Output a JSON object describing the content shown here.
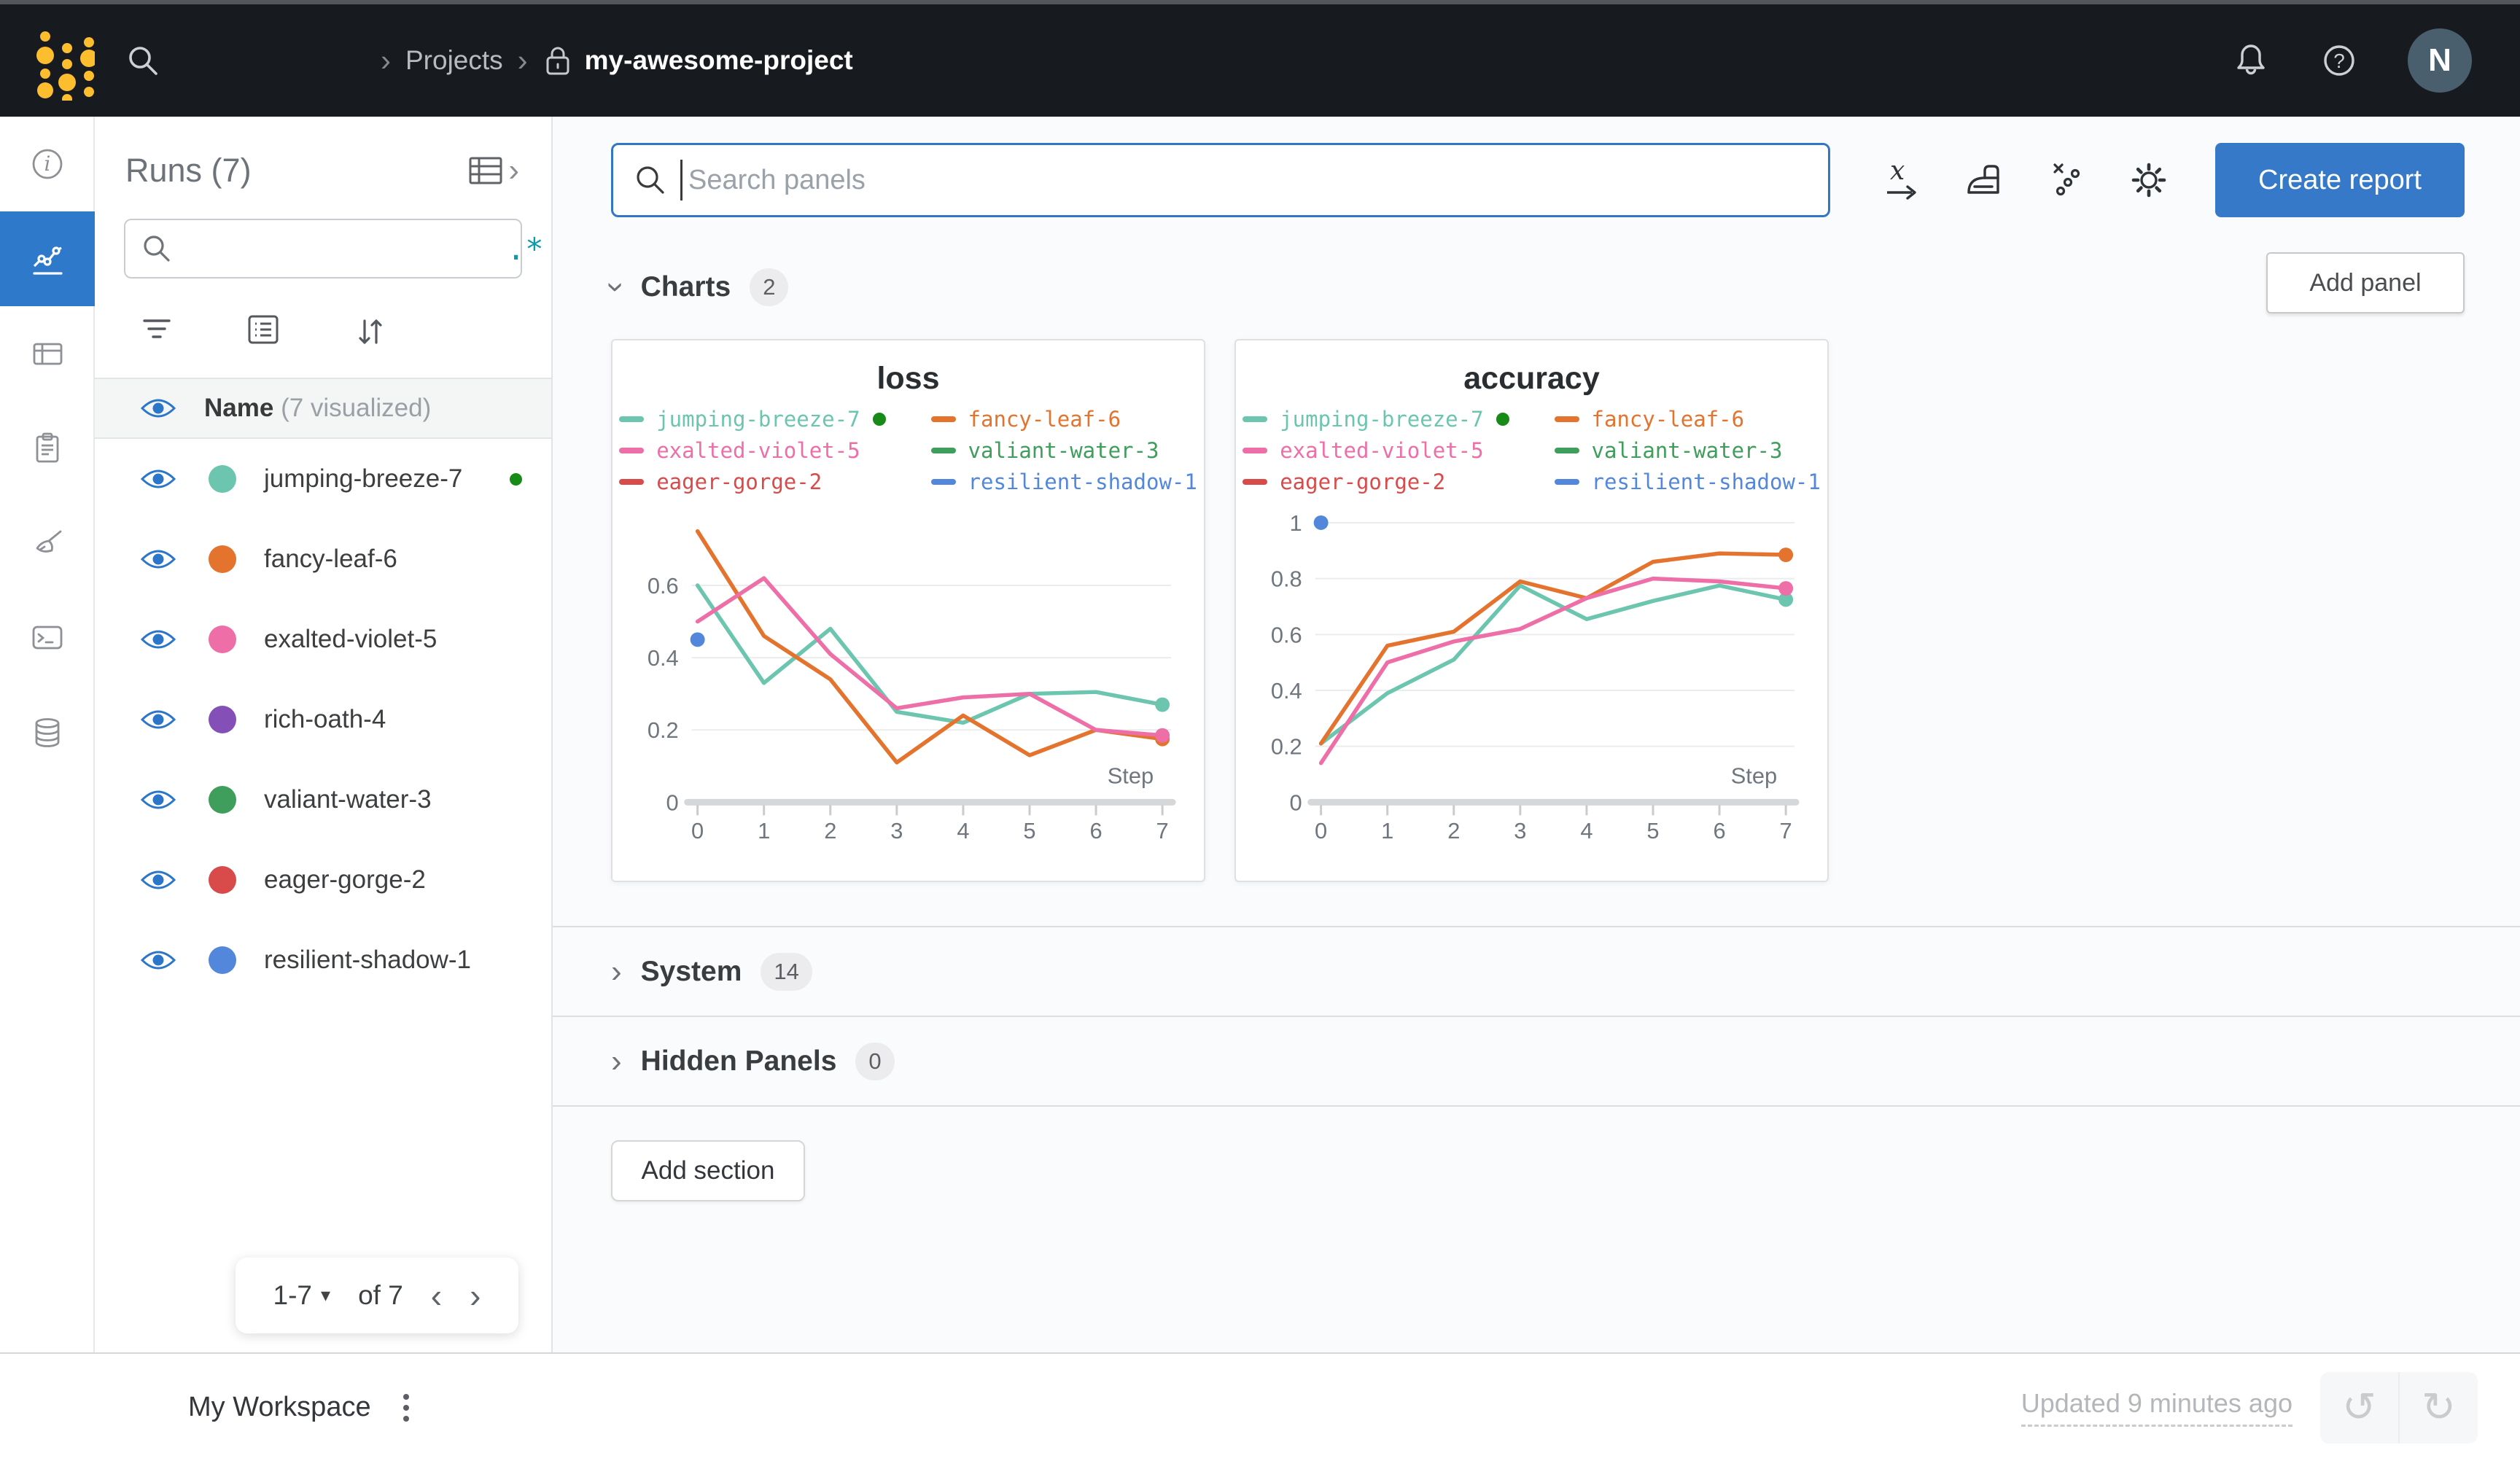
{
  "glyphs": {
    "chevron": "›",
    "dropdown": "▾",
    "prev": "‹",
    "next": "›",
    "undo": "↺",
    "redo": "↻"
  },
  "topbar": {
    "breadcrumb": {
      "projects": "Projects",
      "project_name": "my-awesome-project"
    },
    "avatar_initial": "N"
  },
  "runs_panel": {
    "title": "Runs (7)",
    "regex_toggle": ".*",
    "header": {
      "name": "Name",
      "visualized": "(7 visualized)"
    },
    "runs": [
      {
        "label": "jumping-breeze-7",
        "color": "#6cc5ae",
        "active": true
      },
      {
        "label": "fancy-leaf-6",
        "color": "#e4732e",
        "active": false
      },
      {
        "label": "exalted-violet-5",
        "color": "#ee6ea7",
        "active": false
      },
      {
        "label": "rich-oath-4",
        "color": "#8450b8",
        "active": false
      },
      {
        "label": "valiant-water-3",
        "color": "#3f9e5b",
        "active": false
      },
      {
        "label": "eager-gorge-2",
        "color": "#d94a4a",
        "active": false
      },
      {
        "label": "resilient-shadow-1",
        "color": "#5287dc",
        "active": false
      }
    ],
    "pagination": {
      "range": "1-7",
      "of_label": "of 7"
    }
  },
  "workspace": {
    "search_placeholder": "Search panels",
    "create_report_label": "Create report",
    "add_panel_label": "Add panel",
    "add_section_label": "Add section",
    "sections": [
      {
        "label": "Charts",
        "count": "2",
        "expanded": true
      },
      {
        "label": "System",
        "count": "14",
        "expanded": false
      },
      {
        "label": "Hidden Panels",
        "count": "0",
        "expanded": false
      }
    ]
  },
  "footer": {
    "workspace_label": "My Workspace",
    "updated_text": "Updated 9 minutes ago"
  },
  "status_colors": {
    "run_active_green": "#188a18",
    "accent_blue": "#2e79c9",
    "create_report_blue": "#3579c8",
    "regex_teal": "#0a9cae"
  },
  "chart_data": [
    {
      "type": "line",
      "title": "loss",
      "xlabel": "Step",
      "x": [
        0,
        1,
        2,
        3,
        4,
        5,
        6,
        7
      ],
      "xlim": [
        0,
        7
      ],
      "ylim": [
        0,
        0.82
      ],
      "yticks": [
        0,
        0.2,
        0.4,
        0.6
      ],
      "grid": true,
      "legend_position": "top",
      "series": [
        {
          "name": "jumping-breeze-7",
          "color": "#6cc5ae",
          "running": true,
          "end_dot": true,
          "values": [
            0.6,
            0.33,
            0.48,
            0.25,
            0.22,
            0.3,
            0.305,
            0.27
          ]
        },
        {
          "name": "fancy-leaf-6",
          "color": "#e4732e",
          "end_dot": true,
          "values": [
            0.75,
            0.46,
            0.34,
            0.11,
            0.24,
            0.13,
            0.2,
            0.175
          ]
        },
        {
          "name": "exalted-violet-5",
          "color": "#ee6ea7",
          "end_dot": true,
          "values": [
            0.5,
            0.62,
            0.41,
            0.26,
            0.29,
            0.3,
            0.2,
            0.185
          ]
        },
        {
          "name": "valiant-water-3",
          "color": "#3f9e5b",
          "values": []
        },
        {
          "name": "eager-gorge-2",
          "color": "#d94a4a",
          "values": []
        },
        {
          "name": "resilient-shadow-1",
          "color": "#5287dc",
          "end_dot": true,
          "values": [
            0.45
          ]
        }
      ]
    },
    {
      "type": "line",
      "title": "accuracy",
      "xlabel": "Step",
      "x": [
        0,
        1,
        2,
        3,
        4,
        5,
        6,
        7
      ],
      "xlim": [
        0,
        7
      ],
      "ylim": [
        0,
        1.06
      ],
      "yticks": [
        0,
        0.2,
        0.4,
        0.6,
        0.8,
        1
      ],
      "grid": true,
      "legend_position": "top",
      "series": [
        {
          "name": "jumping-breeze-7",
          "color": "#6cc5ae",
          "running": true,
          "end_dot": true,
          "values": [
            0.21,
            0.39,
            0.51,
            0.775,
            0.655,
            0.72,
            0.775,
            0.725
          ]
        },
        {
          "name": "fancy-leaf-6",
          "color": "#e4732e",
          "end_dot": true,
          "values": [
            0.21,
            0.56,
            0.61,
            0.79,
            0.73,
            0.86,
            0.89,
            0.885
          ]
        },
        {
          "name": "exalted-violet-5",
          "color": "#ee6ea7",
          "end_dot": true,
          "values": [
            0.14,
            0.5,
            0.575,
            0.62,
            0.73,
            0.8,
            0.79,
            0.765
          ]
        },
        {
          "name": "valiant-water-3",
          "color": "#3f9e5b",
          "values": []
        },
        {
          "name": "eager-gorge-2",
          "color": "#d94a4a",
          "values": []
        },
        {
          "name": "resilient-shadow-1",
          "color": "#5287dc",
          "end_dot": true,
          "values": [
            1.0
          ]
        }
      ]
    }
  ]
}
